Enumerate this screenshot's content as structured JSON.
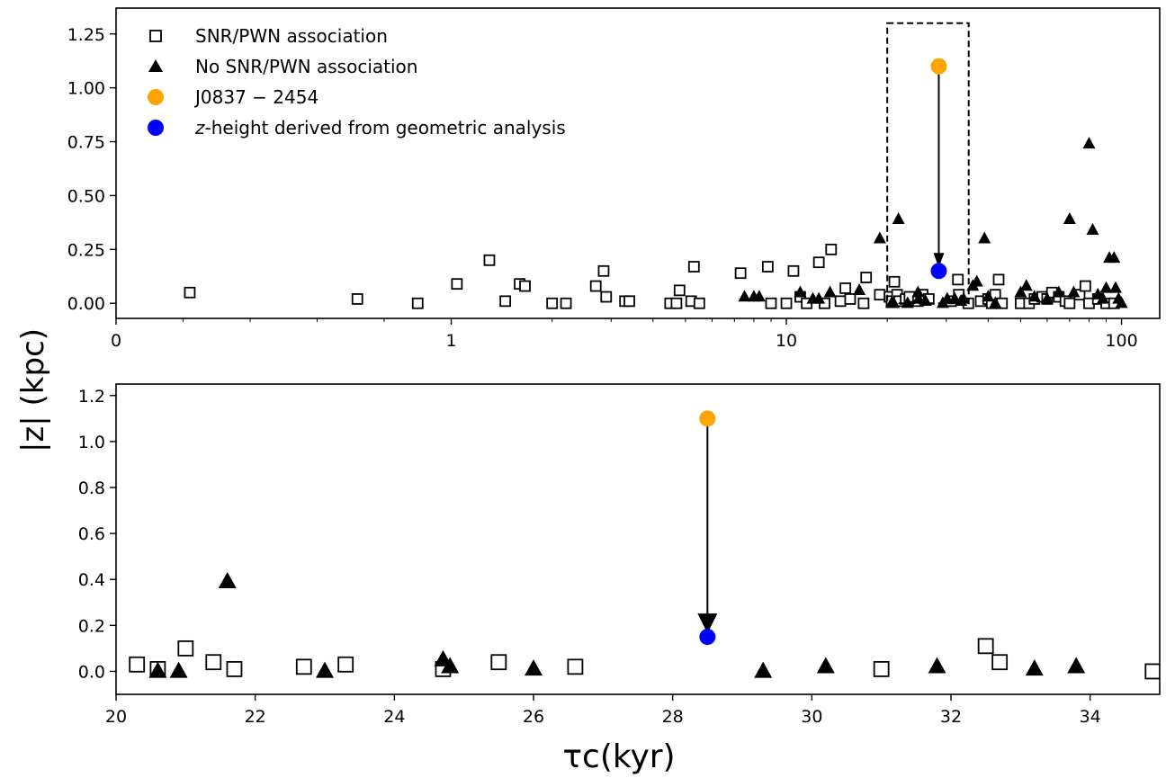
{
  "chart_data": [
    {
      "type": "scatter",
      "x_scale": "symlog",
      "xlim": [
        0,
        130
      ],
      "ylim": [
        -0.07,
        1.37
      ],
      "x_ticks": [
        {
          "value": 0,
          "label": "0"
        },
        {
          "value": 1,
          "label": "1"
        },
        {
          "value": 10,
          "label": "10"
        },
        {
          "value": 100,
          "label": "100"
        }
      ],
      "y_ticks": [
        {
          "value": 0.0,
          "label": "0.00"
        },
        {
          "value": 0.25,
          "label": "0.25"
        },
        {
          "value": 0.5,
          "label": "0.50"
        },
        {
          "value": 0.75,
          "label": "0.75"
        },
        {
          "value": 1.0,
          "label": "1.00"
        },
        {
          "value": 1.25,
          "label": "1.25"
        }
      ],
      "legend": {
        "placement": "upper-left",
        "entries": [
          {
            "label": "SNR/PWN association",
            "marker": "open-square"
          },
          {
            "label": "No SNR/PWN association",
            "marker": "filled-triangle"
          },
          {
            "label": "J0837 − 2454",
            "marker": "circle",
            "color": "#ffa500"
          },
          {
            "label": "z-height derived from geometric analysis",
            "marker": "circle",
            "color": "#0000ff",
            "italic_prefix": "z",
            "rest": "-height derived from geometric analysis"
          }
        ]
      },
      "zoom_box": {
        "x": [
          20,
          35
        ],
        "y": [
          0,
          1.3
        ]
      },
      "highlight": {
        "x": 28.5,
        "from_y": 1.1,
        "to_y": 0.15,
        "from_color": "#ffa500",
        "to_color": "#0000ff"
      },
      "series": [
        {
          "name": "SNR/PWN association",
          "points": [
            [
              0.22,
              0.05
            ],
            [
              0.72,
              0.02
            ],
            [
              0.9,
              0.0
            ],
            [
              1.04,
              0.09
            ],
            [
              1.3,
              0.2
            ],
            [
              1.45,
              0.01
            ],
            [
              1.6,
              0.09
            ],
            [
              1.66,
              0.08
            ],
            [
              2.0,
              0.0
            ],
            [
              2.2,
              0.0
            ],
            [
              2.7,
              0.08
            ],
            [
              2.85,
              0.15
            ],
            [
              2.9,
              0.03
            ],
            [
              3.3,
              0.01
            ],
            [
              3.4,
              0.01
            ],
            [
              4.5,
              0.0
            ],
            [
              4.7,
              0.0
            ],
            [
              4.8,
              0.06
            ],
            [
              5.2,
              0.01
            ],
            [
              5.3,
              0.17
            ],
            [
              5.5,
              0.0
            ],
            [
              7.3,
              0.14
            ],
            [
              8.8,
              0.17
            ],
            [
              9.0,
              0.0
            ],
            [
              10.0,
              0.0
            ],
            [
              10.5,
              0.15
            ],
            [
              11.0,
              0.03
            ],
            [
              11.5,
              0.0
            ],
            [
              12.5,
              0.19
            ],
            [
              13.0,
              0.0
            ],
            [
              13.6,
              0.25
            ],
            [
              14.5,
              0.01
            ],
            [
              15.0,
              0.07
            ],
            [
              15.5,
              0.02
            ],
            [
              17.0,
              0.0
            ],
            [
              17.3,
              0.12
            ],
            [
              19.0,
              0.04
            ],
            [
              20.3,
              0.03
            ],
            [
              20.6,
              0.01
            ],
            [
              21.0,
              0.1
            ],
            [
              21.4,
              0.04
            ],
            [
              21.7,
              0.01
            ],
            [
              22.7,
              0.02
            ],
            [
              23.3,
              0.03
            ],
            [
              24.7,
              0.01
            ],
            [
              25.5,
              0.04
            ],
            [
              26.6,
              0.02
            ],
            [
              31.0,
              0.01
            ],
            [
              32.5,
              0.11
            ],
            [
              32.7,
              0.04
            ],
            [
              34.9,
              0.0
            ],
            [
              38.0,
              0.01
            ],
            [
              40.0,
              0.02
            ],
            [
              41.0,
              0.0
            ],
            [
              42.0,
              0.04
            ],
            [
              43.0,
              0.11
            ],
            [
              44.0,
              0.0
            ],
            [
              50.0,
              0.0
            ],
            [
              53.0,
              0.0
            ],
            [
              55.0,
              0.02
            ],
            [
              58.0,
              0.03
            ],
            [
              60.0,
              0.02
            ],
            [
              62.0,
              0.05
            ],
            [
              65.0,
              0.03
            ],
            [
              68.0,
              0.01
            ],
            [
              70.0,
              0.0
            ],
            [
              75.0,
              0.04
            ],
            [
              78.0,
              0.08
            ],
            [
              80.0,
              0.0
            ],
            [
              85.0,
              0.02
            ],
            [
              90.0,
              0.0
            ],
            [
              95.0,
              0.0
            ]
          ]
        },
        {
          "name": "No SNR/PWN association",
          "points": [
            [
              7.5,
              0.03
            ],
            [
              8.0,
              0.03
            ],
            [
              8.3,
              0.03
            ],
            [
              11.0,
              0.05
            ],
            [
              12.0,
              0.02
            ],
            [
              12.5,
              0.02
            ],
            [
              13.5,
              0.05
            ],
            [
              16.5,
              0.06
            ],
            [
              19.0,
              0.3
            ],
            [
              20.6,
              0.0
            ],
            [
              20.9,
              0.0
            ],
            [
              21.6,
              0.39
            ],
            [
              23.0,
              0.0
            ],
            [
              24.7,
              0.05
            ],
            [
              24.8,
              0.02
            ],
            [
              26.0,
              0.01
            ],
            [
              29.3,
              0.0
            ],
            [
              30.2,
              0.02
            ],
            [
              31.8,
              0.02
            ],
            [
              33.2,
              0.01
            ],
            [
              33.8,
              0.02
            ],
            [
              36.0,
              0.08
            ],
            [
              37.0,
              0.1
            ],
            [
              39.0,
              0.3
            ],
            [
              40.0,
              0.03
            ],
            [
              42.0,
              0.0
            ],
            [
              50.0,
              0.05
            ],
            [
              52.0,
              0.08
            ],
            [
              55.0,
              0.03
            ],
            [
              60.0,
              0.02
            ],
            [
              65.0,
              0.05
            ],
            [
              70.0,
              0.39
            ],
            [
              72.0,
              0.05
            ],
            [
              80.0,
              0.74
            ],
            [
              82.0,
              0.34
            ],
            [
              85.0,
              0.04
            ],
            [
              88.0,
              0.02
            ],
            [
              90.0,
              0.07
            ],
            [
              92.0,
              0.21
            ],
            [
              95.0,
              0.21
            ],
            [
              96.0,
              0.07
            ],
            [
              98.0,
              0.02
            ],
            [
              100.0,
              0.0
            ]
          ]
        }
      ]
    },
    {
      "type": "scatter",
      "xlim": [
        20,
        35
      ],
      "ylim": [
        -0.1,
        1.25
      ],
      "xlabel": "τc(kyr)",
      "ylabel": "|z| (kpc)",
      "x_ticks": [
        {
          "value": 20,
          "label": "20"
        },
        {
          "value": 22,
          "label": "22"
        },
        {
          "value": 24,
          "label": "24"
        },
        {
          "value": 26,
          "label": "26"
        },
        {
          "value": 28,
          "label": "28"
        },
        {
          "value": 30,
          "label": "30"
        },
        {
          "value": 32,
          "label": "32"
        },
        {
          "value": 34,
          "label": "34"
        }
      ],
      "y_ticks": [
        {
          "value": 0.0,
          "label": "0.0"
        },
        {
          "value": 0.2,
          "label": "0.2"
        },
        {
          "value": 0.4,
          "label": "0.4"
        },
        {
          "value": 0.6,
          "label": "0.6"
        },
        {
          "value": 0.8,
          "label": "0.8"
        },
        {
          "value": 1.0,
          "label": "1.0"
        },
        {
          "value": 1.2,
          "label": "1.2"
        }
      ],
      "highlight": {
        "x": 28.5,
        "from_y": 1.1,
        "to_y": 0.15,
        "from_color": "#ffa500",
        "to_color": "#0000ff"
      },
      "series": [
        {
          "name": "SNR/PWN association",
          "points": [
            [
              20.3,
              0.03
            ],
            [
              20.6,
              0.01
            ],
            [
              21.0,
              0.1
            ],
            [
              21.4,
              0.04
            ],
            [
              21.7,
              0.01
            ],
            [
              22.7,
              0.02
            ],
            [
              23.3,
              0.03
            ],
            [
              24.7,
              0.01
            ],
            [
              25.5,
              0.04
            ],
            [
              26.6,
              0.02
            ],
            [
              31.0,
              0.01
            ],
            [
              32.5,
              0.11
            ],
            [
              32.7,
              0.04
            ],
            [
              34.9,
              0.0
            ]
          ]
        },
        {
          "name": "No SNR/PWN association",
          "points": [
            [
              20.6,
              0.0
            ],
            [
              20.9,
              0.0
            ],
            [
              21.6,
              0.39
            ],
            [
              23.0,
              0.0
            ],
            [
              24.7,
              0.05
            ],
            [
              24.8,
              0.02
            ],
            [
              26.0,
              0.01
            ],
            [
              29.3,
              0.0
            ],
            [
              30.2,
              0.02
            ],
            [
              31.8,
              0.02
            ],
            [
              33.2,
              0.01
            ],
            [
              33.8,
              0.02
            ]
          ]
        }
      ]
    }
  ]
}
